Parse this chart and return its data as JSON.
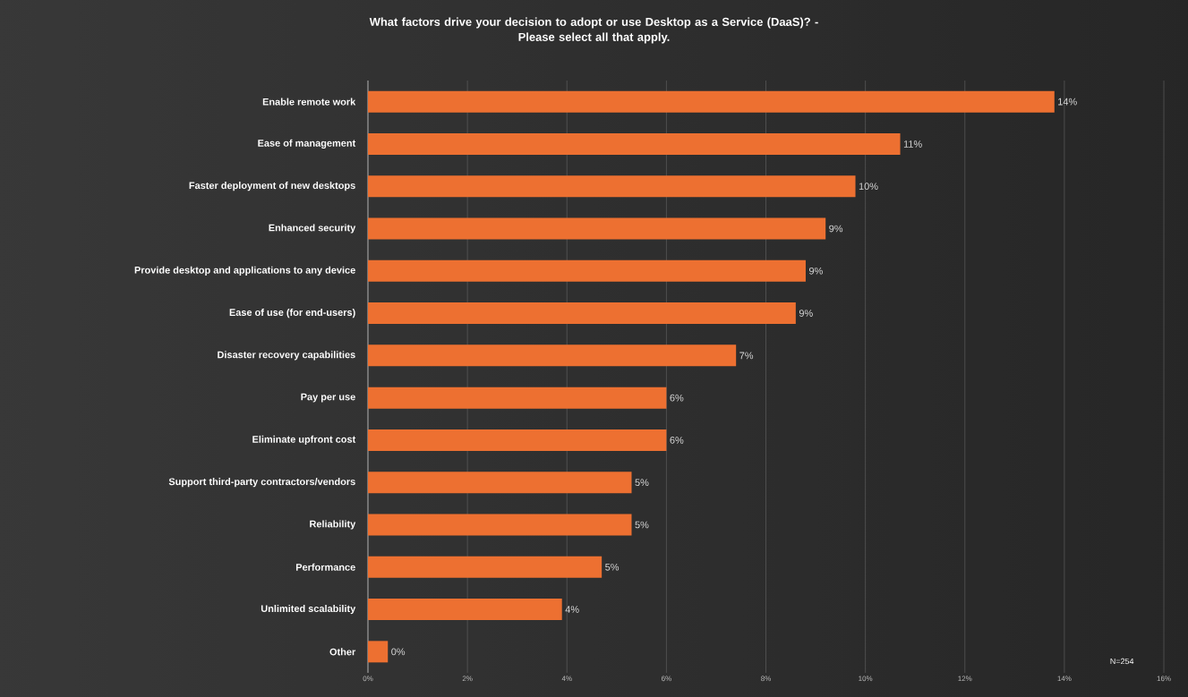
{
  "chart_data": {
    "type": "bar",
    "orientation": "horizontal",
    "title": "What factors drive your decision to adopt or use Desktop as a Service (DaaS)? -\nPlease select all that apply.",
    "categories": [
      "Enable remote work",
      "Ease of management",
      "Faster deployment of new desktops",
      "Enhanced security",
      "Provide desktop and applications to any device",
      "Ease of use (for end-users)",
      "Disaster recovery capabilities",
      "Pay per use",
      "Eliminate upfront cost",
      "Support third-party contractors/vendors",
      "Reliability",
      "Performance",
      "Unlimited scalability",
      "Other"
    ],
    "values": [
      13.8,
      10.7,
      9.8,
      9.2,
      8.8,
      8.6,
      7.4,
      6.0,
      6.0,
      5.3,
      5.3,
      4.7,
      3.9,
      0.4
    ],
    "value_labels": [
      "14%",
      "11%",
      "10%",
      "9%",
      "9%",
      "9%",
      "7%",
      "6%",
      "6%",
      "5%",
      "5%",
      "5%",
      "4%",
      "0%"
    ],
    "color": "#ed7031",
    "xlim": [
      0,
      16
    ],
    "xticks": [
      {
        "value": 0,
        "label": "0%"
      },
      {
        "value": 2,
        "label": "2%"
      },
      {
        "value": 4,
        "label": "4%"
      },
      {
        "value": 6,
        "label": "6%"
      },
      {
        "value": 8,
        "label": "8%"
      },
      {
        "value": 10,
        "label": "10%"
      },
      {
        "value": 12,
        "label": "12%"
      },
      {
        "value": 14,
        "label": "14%"
      },
      {
        "value": 16,
        "label": "16%"
      }
    ],
    "grid": "x",
    "annotations": [
      "N=254"
    ]
  }
}
